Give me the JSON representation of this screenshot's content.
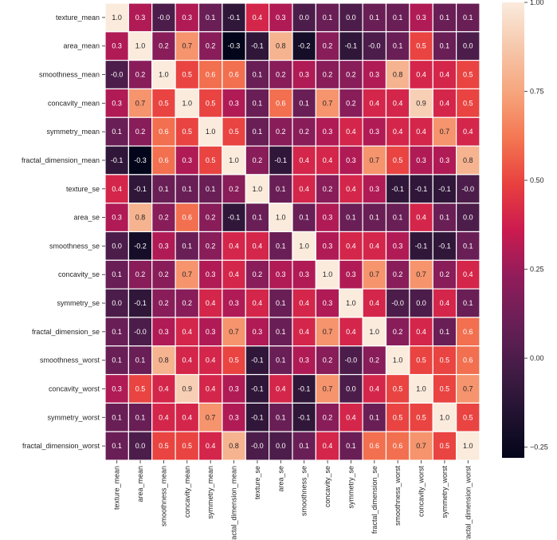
{
  "chart_data": {
    "type": "heatmap",
    "title": "",
    "xlabel": "",
    "ylabel": "",
    "colormap": "rocket",
    "vmin": -0.28,
    "vmax": 1.0,
    "grid_lines_color": "#ffffff",
    "labels": [
      "texture_mean",
      "area_mean",
      "smoothness_mean",
      "concavity_mean",
      "symmetry_mean",
      "fractal_dimension_mean",
      "texture_se",
      "area_se",
      "smoothness_se",
      "concavity_se",
      "symmetry_se",
      "fractal_dimension_se",
      "smoothness_worst",
      "concavity_worst",
      "symmetry_worst",
      "fractal_dimension_worst"
    ],
    "annotations": [
      [
        "1.0",
        "0.3",
        "-0.0",
        "0.3",
        "0.1",
        "-0.1",
        "0.4",
        "0.3",
        "0.0",
        "0.1",
        "0.0",
        "0.1",
        "0.1",
        "0.3",
        "0.1",
        "0.1"
      ],
      [
        "0.3",
        "1.0",
        "0.2",
        "0.7",
        "0.2",
        "-0.3",
        "-0.1",
        "0.8",
        "-0.2",
        "0.2",
        "-0.1",
        "-0.0",
        "0.1",
        "0.5",
        "0.1",
        "0.0"
      ],
      [
        "-0.0",
        "0.2",
        "1.0",
        "0.5",
        "0.6",
        "0.6",
        "0.1",
        "0.2",
        "0.3",
        "0.2",
        "0.2",
        "0.3",
        "0.8",
        "0.4",
        "0.4",
        "0.5"
      ],
      [
        "0.3",
        "0.7",
        "0.5",
        "1.0",
        "0.5",
        "0.3",
        "0.1",
        "0.6",
        "0.1",
        "0.7",
        "0.2",
        "0.4",
        "0.4",
        "0.9",
        "0.4",
        "0.5"
      ],
      [
        "0.1",
        "0.2",
        "0.6",
        "0.5",
        "1.0",
        "0.5",
        "0.1",
        "0.2",
        "0.2",
        "0.3",
        "0.4",
        "0.3",
        "0.4",
        "0.4",
        "0.7",
        "0.4"
      ],
      [
        "-0.1",
        "-0.3",
        "0.6",
        "0.3",
        "0.5",
        "1.0",
        "0.2",
        "-0.1",
        "0.4",
        "0.4",
        "0.3",
        "0.7",
        "0.5",
        "0.3",
        "0.3",
        "0.8"
      ],
      [
        "0.4",
        "-0.1",
        "0.1",
        "0.1",
        "0.1",
        "0.2",
        "1.0",
        "0.1",
        "0.4",
        "0.2",
        "0.4",
        "0.3",
        "-0.1",
        "-0.1",
        "-0.1",
        "-0.0"
      ],
      [
        "0.3",
        "0.8",
        "0.2",
        "0.6",
        "0.2",
        "-0.1",
        "0.1",
        "1.0",
        "0.1",
        "0.3",
        "0.1",
        "0.1",
        "0.1",
        "0.4",
        "0.1",
        "0.0"
      ],
      [
        "0.0",
        "-0.2",
        "0.3",
        "0.1",
        "0.2",
        "0.4",
        "0.4",
        "0.1",
        "1.0",
        "0.3",
        "0.4",
        "0.4",
        "0.3",
        "-0.1",
        "-0.1",
        "0.1"
      ],
      [
        "0.1",
        "0.2",
        "0.2",
        "0.7",
        "0.3",
        "0.4",
        "0.2",
        "0.3",
        "0.3",
        "1.0",
        "0.3",
        "0.7",
        "0.2",
        "0.7",
        "0.2",
        "0.4"
      ],
      [
        "0.0",
        "-0.1",
        "0.2",
        "0.2",
        "0.4",
        "0.3",
        "0.4",
        "0.1",
        "0.4",
        "0.3",
        "1.0",
        "0.4",
        "-0.0",
        "0.0",
        "0.4",
        "0.1"
      ],
      [
        "0.1",
        "-0.0",
        "0.3",
        "0.4",
        "0.3",
        "0.7",
        "0.3",
        "0.1",
        "0.4",
        "0.7",
        "0.4",
        "1.0",
        "0.2",
        "0.4",
        "0.1",
        "0.6"
      ],
      [
        "0.1",
        "0.1",
        "0.8",
        "0.4",
        "0.4",
        "0.5",
        "-0.1",
        "0.1",
        "0.3",
        "0.2",
        "-0.0",
        "0.2",
        "1.0",
        "0.5",
        "0.5",
        "0.6"
      ],
      [
        "0.3",
        "0.5",
        "0.4",
        "0.9",
        "0.4",
        "0.3",
        "-0.1",
        "0.4",
        "-0.1",
        "0.7",
        "0.0",
        "0.4",
        "0.5",
        "1.0",
        "0.5",
        "0.7"
      ],
      [
        "0.1",
        "0.1",
        "0.4",
        "0.4",
        "0.7",
        "0.3",
        "-0.1",
        "0.1",
        "-0.1",
        "0.2",
        "0.4",
        "0.1",
        "0.5",
        "0.5",
        "1.0",
        "0.5"
      ],
      [
        "0.1",
        "0.0",
        "0.5",
        "0.5",
        "0.4",
        "0.8",
        "-0.0",
        "0.0",
        "0.1",
        "0.4",
        "0.1",
        "0.6",
        "0.6",
        "0.7",
        "0.5",
        "1.0"
      ]
    ],
    "colorbar": {
      "ticks": [
        1.0,
        0.75,
        0.5,
        0.25,
        0.0,
        -0.25
      ],
      "tick_labels": [
        "1.00",
        "0.75",
        "0.50",
        "0.25",
        "0.00",
        "−0.25"
      ]
    }
  }
}
